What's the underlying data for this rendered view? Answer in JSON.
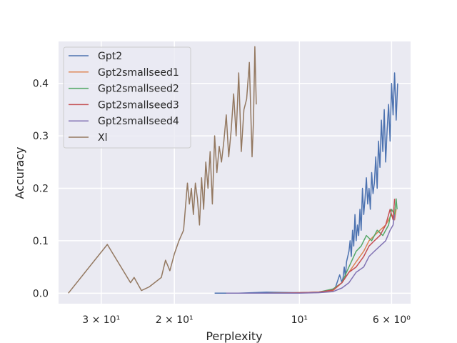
{
  "chart_data": {
    "type": "line",
    "title": "",
    "xlabel": "Perplexity",
    "ylabel": "Accuracy",
    "x_scale": "log",
    "x_inverted": true,
    "xlim": [
      38,
      5.4
    ],
    "ylim": [
      -0.02,
      0.48
    ],
    "x_ticks": [
      {
        "value": 30,
        "label": "3 × 10¹"
      },
      {
        "value": 20,
        "label": "2 × 10¹"
      },
      {
        "value": 10,
        "label": "10¹"
      },
      {
        "value": 6,
        "label": "6 × 10⁰"
      }
    ],
    "y_ticks": [
      {
        "value": 0.0,
        "label": "0.0"
      },
      {
        "value": 0.1,
        "label": "0.1"
      },
      {
        "value": 0.2,
        "label": "0.2"
      },
      {
        "value": 0.3,
        "label": "0.3"
      },
      {
        "value": 0.4,
        "label": "0.4"
      }
    ],
    "grid": true,
    "legend_position": "top-left",
    "series": [
      {
        "name": "Gpt2",
        "color": "#4c72b0",
        "x": [
          16.0,
          14.0,
          12.0,
          10.0,
          9.0,
          8.5,
          8.2,
          8.0,
          7.9,
          7.85,
          7.8,
          7.75,
          7.7,
          7.6,
          7.55,
          7.5,
          7.45,
          7.4,
          7.35,
          7.3,
          7.25,
          7.2,
          7.15,
          7.1,
          7.05,
          7.0,
          6.95,
          6.9,
          6.85,
          6.8,
          6.75,
          6.7,
          6.65,
          6.6,
          6.55,
          6.5,
          6.45,
          6.4,
          6.35,
          6.3,
          6.25,
          6.2,
          6.15,
          6.1,
          6.05,
          6.0,
          5.95,
          5.9,
          5.85,
          5.8
        ],
        "y": [
          0.0,
          0.0,
          0.002,
          0.001,
          0.002,
          0.004,
          0.01,
          0.035,
          0.02,
          0.03,
          0.05,
          0.03,
          0.06,
          0.08,
          0.1,
          0.07,
          0.12,
          0.09,
          0.15,
          0.1,
          0.13,
          0.11,
          0.16,
          0.12,
          0.2,
          0.15,
          0.18,
          0.22,
          0.17,
          0.2,
          0.16,
          0.23,
          0.19,
          0.21,
          0.26,
          0.2,
          0.29,
          0.24,
          0.33,
          0.27,
          0.35,
          0.25,
          0.31,
          0.36,
          0.29,
          0.4,
          0.34,
          0.42,
          0.33,
          0.4
        ]
      },
      {
        "name": "Gpt2smallseed1",
        "color": "#dd8452",
        "x": [
          15.0,
          12.0,
          10.0,
          9.0,
          8.3,
          7.9,
          7.6,
          7.3,
          7.0,
          6.8,
          6.6,
          6.4,
          6.2,
          6.0,
          5.9,
          5.85
        ],
        "y": [
          0.0,
          0.0,
          0.001,
          0.002,
          0.005,
          0.02,
          0.04,
          0.06,
          0.08,
          0.1,
          0.11,
          0.12,
          0.13,
          0.15,
          0.14,
          0.16
        ]
      },
      {
        "name": "Gpt2smallseed2",
        "color": "#55a868",
        "x": [
          15.0,
          12.0,
          10.0,
          9.0,
          8.3,
          7.9,
          7.7,
          7.5,
          7.3,
          7.1,
          6.9,
          6.7,
          6.5,
          6.3,
          6.1,
          6.0,
          5.9,
          5.85,
          5.82
        ],
        "y": [
          0.0,
          0.0,
          0.001,
          0.002,
          0.008,
          0.02,
          0.04,
          0.06,
          0.08,
          0.09,
          0.11,
          0.1,
          0.12,
          0.11,
          0.13,
          0.16,
          0.15,
          0.18,
          0.16
        ]
      },
      {
        "name": "Gpt2smallseed3",
        "color": "#c44e52",
        "x": [
          15.0,
          12.0,
          10.0,
          9.0,
          8.3,
          7.9,
          7.6,
          7.3,
          7.0,
          6.8,
          6.6,
          6.4,
          6.2,
          6.05,
          5.95,
          5.9
        ],
        "y": [
          0.0,
          0.0,
          0.001,
          0.002,
          0.006,
          0.02,
          0.04,
          0.05,
          0.07,
          0.09,
          0.1,
          0.11,
          0.13,
          0.16,
          0.14,
          0.18
        ]
      },
      {
        "name": "Gpt2smallseed4",
        "color": "#8172b3",
        "x": [
          15.0,
          12.0,
          10.0,
          9.0,
          8.3,
          7.9,
          7.6,
          7.3,
          7.0,
          6.8,
          6.6,
          6.4,
          6.2,
          6.05,
          5.95,
          5.9
        ],
        "y": [
          0.0,
          0.0,
          0.0,
          0.001,
          0.003,
          0.01,
          0.02,
          0.04,
          0.05,
          0.07,
          0.08,
          0.09,
          0.1,
          0.12,
          0.13,
          0.15
        ]
      },
      {
        "name": "Xl",
        "color": "#937860",
        "x": [
          36.0,
          29.0,
          25.5,
          25.0,
          24.0,
          23.0,
          21.5,
          21.0,
          20.5,
          20.0,
          19.5,
          19.0,
          18.6,
          18.4,
          18.2,
          18.0,
          17.8,
          17.6,
          17.4,
          17.2,
          17.0,
          16.8,
          16.6,
          16.4,
          16.2,
          16.0,
          15.8,
          15.6,
          15.4,
          15.2,
          15.0,
          14.8,
          14.6,
          14.4,
          14.2,
          14.0,
          13.8,
          13.6,
          13.4,
          13.2,
          13.0,
          12.9,
          12.8,
          12.7
        ],
        "y": [
          0.0,
          0.093,
          0.02,
          0.03,
          0.005,
          0.012,
          0.03,
          0.063,
          0.043,
          0.075,
          0.1,
          0.12,
          0.21,
          0.17,
          0.2,
          0.15,
          0.21,
          0.18,
          0.13,
          0.22,
          0.16,
          0.25,
          0.2,
          0.27,
          0.17,
          0.3,
          0.23,
          0.28,
          0.25,
          0.29,
          0.34,
          0.26,
          0.31,
          0.38,
          0.3,
          0.42,
          0.27,
          0.35,
          0.37,
          0.44,
          0.26,
          0.33,
          0.47,
          0.36
        ]
      }
    ]
  }
}
